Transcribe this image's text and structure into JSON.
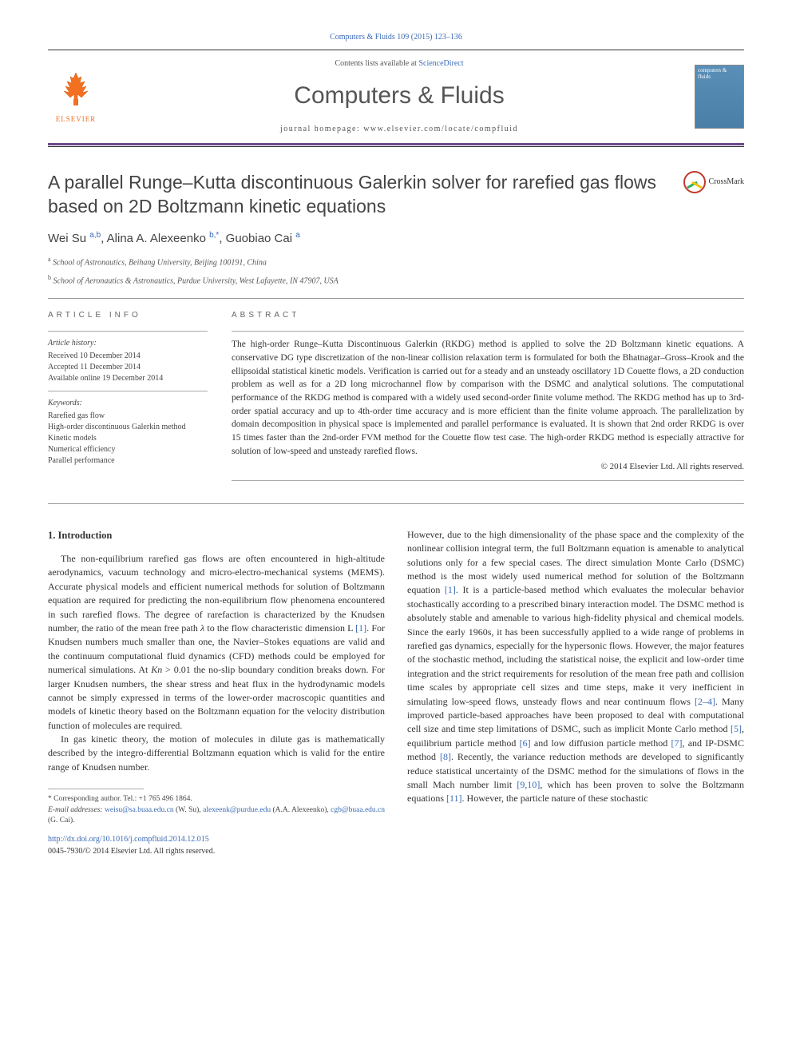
{
  "citation": "Computers & Fluids 109 (2015) 123–136",
  "masthead": {
    "contents_prefix": "Contents lists available at ",
    "contents_link": "ScienceDirect",
    "journal": "Computers & Fluids",
    "homepage_prefix": "journal homepage: ",
    "homepage": "www.elsevier.com/locate/compfluid",
    "elsevier_label": "ELSEVIER",
    "cover_title": "computers & fluids"
  },
  "crossmark_label": "CrossMark",
  "title": "A parallel Runge–Kutta discontinuous Galerkin solver for rarefied gas flows based on 2D Boltzmann kinetic equations",
  "authors_html": "Wei Su <sup>a,b</sup>, Alina A. Alexeenko <sup>b,*</sup>, Guobiao Cai <sup>a</sup>",
  "affiliations": [
    {
      "key": "a",
      "text": "School of Astronautics, Beihang University, Beijing 100191, China"
    },
    {
      "key": "b",
      "text": "School of Aeronautics & Astronautics, Purdue University, West Lafayette, IN 47907, USA"
    }
  ],
  "info": {
    "label": "ARTICLE INFO",
    "history_label": "Article history:",
    "history": [
      "Received 10 December 2014",
      "Accepted 11 December 2014",
      "Available online 19 December 2014"
    ],
    "keywords_label": "Keywords:",
    "keywords": [
      "Rarefied gas flow",
      "High-order discontinuous Galerkin method",
      "Kinetic models",
      "Numerical efficiency",
      "Parallel performance"
    ]
  },
  "abstract": {
    "label": "ABSTRACT",
    "text": "The high-order Runge–Kutta Discontinuous Galerkin (RKDG) method is applied to solve the 2D Boltzmann kinetic equations. A conservative DG type discretization of the non-linear collision relaxation term is formulated for both the Bhatnagar–Gross–Krook and the ellipsoidal statistical kinetic models. Verification is carried out for a steady and an unsteady oscillatory 1D Couette flows, a 2D conduction problem as well as for a 2D long microchannel flow by comparison with the DSMC and analytical solutions. The computational performance of the RKDG method is compared with a widely used second-order finite volume method. The RKDG method has up to 3rd-order spatial accuracy and up to 4th-order time accuracy and is more efficient than the finite volume approach. The parallelization by domain decomposition in physical space is implemented and parallel performance is evaluated. It is shown that 2nd order RKDG is over 15 times faster than the 2nd-order FVM method for the Couette flow test case. The high-order RKDG method is especially attractive for solution of low-speed and unsteady rarefied flows.",
    "copyright": "© 2014 Elsevier Ltd. All rights reserved."
  },
  "body": {
    "heading1": "1. Introduction",
    "p1": "The non-equilibrium rarefied gas flows are often encountered in high-altitude aerodynamics, vacuum technology and micro-electro-mechanical systems (MEMS). Accurate physical models and efficient numerical methods for solution of Boltzmann equation are required for predicting the non-equilibrium flow phenomena encountered in such rarefied flows. The degree of rarefaction is characterized by the Knudsen number, the ratio of the mean free path λ to the flow characteristic dimension L [1]. For Knudsen numbers much smaller than one, the Navier–Stokes equations are valid and the continuum computational fluid dynamics (CFD) methods could be employed for numerical simulations. At Kn > 0.01 the no-slip boundary condition breaks down. For larger Knudsen numbers, the shear stress and heat flux in the hydrodynamic models cannot be simply expressed in terms of the lower-order macroscopic quantities and models of kinetic theory based on the Boltzmann equation for the velocity distribution function of molecules are required.",
    "p2": "In gas kinetic theory, the motion of molecules in dilute gas is mathematically described by the integro-differential Boltzmann equation which is valid for the entire range of Knudsen number.",
    "p3": "However, due to the high dimensionality of the phase space and the complexity of the nonlinear collision integral term, the full Boltzmann equation is amenable to analytical solutions only for a few special cases. The direct simulation Monte Carlo (DSMC) method is the most widely used numerical method for solution of the Boltzmann equation [1]. It is a particle-based method which evaluates the molecular behavior stochastically according to a prescribed binary interaction model. The DSMC method is absolutely stable and amenable to various high-fidelity physical and chemical models. Since the early 1960s, it has been successfully applied to a wide range of problems in rarefied gas dynamics, especially for the hypersonic flows. However, the major features of the stochastic method, including the statistical noise, the explicit and low-order time integration and the strict requirements for resolution of the mean free path and collision time scales by appropriate cell sizes and time steps, make it very inefficient in simulating low-speed flows, unsteady flows and near continuum flows [2–4]. Many improved particle-based approaches have been proposed to deal with computational cell size and time step limitations of DSMC, such as implicit Monte Carlo method [5], equilibrium particle method [6] and low diffusion particle method [7], and IP-DSMC method [8]. Recently, the variance reduction methods are developed to significantly reduce statistical uncertainty of the DSMC method for the simulations of flows in the small Mach number limit [9,10], which has been proven to solve the Boltzmann equations [11]. However, the particle nature of these stochastic"
  },
  "footnotes": {
    "corr": "* Corresponding author. Tel.: +1 765 496 1864.",
    "email_label": "E-mail addresses:",
    "emails": [
      {
        "addr": "weisu@sa.buaa.edu.cn",
        "who": "(W. Su)"
      },
      {
        "addr": "alexeenk@purdue.edu",
        "who": "(A.A. Alexeenko)"
      },
      {
        "addr": "cgb@buaa.edu.cn",
        "who": "(G. Cai)"
      }
    ]
  },
  "doi": {
    "url": "http://dx.doi.org/10.1016/j.compfluid.2014.12.015",
    "issn_line": "0045-7930/© 2014 Elsevier Ltd. All rights reserved."
  },
  "colors": {
    "link": "#3b6bb4",
    "rule_accent": "#6b4a8a",
    "elsevier_orange": "#f37021"
  }
}
